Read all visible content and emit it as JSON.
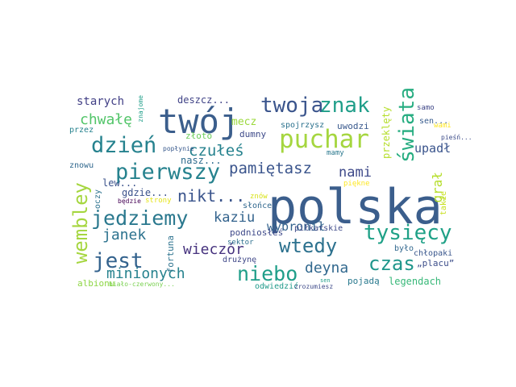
{
  "words": [
    {
      "text": "polska",
      "color": "#3b5e8c"
    },
    {
      "text": "twój",
      "color": "#3b5e8c"
    },
    {
      "text": "puchar",
      "color": "#a5d63f"
    },
    {
      "text": "twoja",
      "color": "#3a548c"
    },
    {
      "text": "znak",
      "color": "#1f9e89"
    },
    {
      "text": "dzień",
      "color": "#26828e"
    },
    {
      "text": "pierwszy",
      "color": "#26828e"
    },
    {
      "text": "świata",
      "color": "#27ad81"
    },
    {
      "text": "tysięcy",
      "color": "#1fa187"
    },
    {
      "text": "wembley",
      "color": "#a5d63f"
    },
    {
      "text": "jedziemy",
      "color": "#2a788e"
    },
    {
      "text": "jest",
      "color": "#33628d"
    },
    {
      "text": "niebo",
      "color": "#1f9e89"
    },
    {
      "text": "czas",
      "color": "#1f968b"
    },
    {
      "text": "wtedy",
      "color": "#2c718e"
    },
    {
      "text": "pamiętasz",
      "color": "#3a548c"
    },
    {
      "text": "nami",
      "color": "#3e4989"
    },
    {
      "text": "czułeś",
      "color": "#26828e"
    },
    {
      "text": "chwałę",
      "color": "#52c569"
    },
    {
      "text": "nikt...",
      "color": "#3a548c"
    },
    {
      "text": "kaziu",
      "color": "#33638d"
    },
    {
      "text": "janek",
      "color": "#2c728e"
    },
    {
      "text": "wieczór",
      "color": "#46327e"
    },
    {
      "text": "minionych",
      "color": "#26828e"
    },
    {
      "text": "deyna",
      "color": "#31688e"
    },
    {
      "text": "grał",
      "color": "#b5de2b"
    },
    {
      "text": "upadł",
      "color": "#3a548c"
    },
    {
      "text": "wybronił",
      "color": "#33638d"
    },
    {
      "text": "starych",
      "color": "#424086"
    },
    {
      "text": "deszcz...",
      "color": "#414487"
    },
    {
      "text": "mecz",
      "color": "#9bd93c"
    },
    {
      "text": "złoto",
      "color": "#6ccd5a"
    },
    {
      "text": "dumny",
      "color": "#3e4a89"
    },
    {
      "text": "nasz...",
      "color": "#2f6c8e"
    },
    {
      "text": "spojrzysz",
      "color": "#2c728e"
    },
    {
      "text": "uwodzi",
      "color": "#38588c"
    },
    {
      "text": "sen...",
      "color": "#375b8d"
    },
    {
      "text": "samo",
      "color": "#3f4788"
    },
    {
      "text": "wami",
      "color": "#fde725"
    },
    {
      "text": "przeklęty",
      "color": "#b5de2b"
    },
    {
      "text": "mamy",
      "color": "#2a788e"
    },
    {
      "text": "gdzie...",
      "color": "#3b528b"
    },
    {
      "text": "lew...",
      "color": "#3b528b"
    },
    {
      "text": "znowu",
      "color": "#31688e"
    },
    {
      "text": "oczy",
      "color": "#2c728e"
    },
    {
      "text": "znów",
      "color": "#d8e219"
    },
    {
      "text": "będzie",
      "color": "#440154"
    },
    {
      "text": "strony",
      "color": "#e5e419"
    },
    {
      "text": "słońce",
      "color": "#31688e"
    },
    {
      "text": "podniosłeś",
      "color": "#3e4989"
    },
    {
      "text": "sektor",
      "color": "#2d708e"
    },
    {
      "text": "fortuna",
      "color": "#2c728e"
    },
    {
      "text": "drużynę",
      "color": "#3f4788"
    },
    {
      "text": "albionu",
      "color": "#8ed645"
    },
    {
      "text": "biało-czerwony...",
      "color": "#7ad151"
    },
    {
      "text": "odwiedzić",
      "color": "#1f9a8a"
    },
    {
      "text": "zrozumiesz",
      "color": "#3e4a89"
    },
    {
      "text": "pojadą",
      "color": "#29798e"
    },
    {
      "text": "legendach",
      "color": "#37b878"
    },
    {
      "text": "„placu”",
      "color": "#3d4e8a"
    },
    {
      "text": "było",
      "color": "#31678e"
    },
    {
      "text": "chłopaki",
      "color": "#39568c"
    },
    {
      "text": "piłkarskie",
      "color": "#3e4a89"
    },
    {
      "text": "piękne",
      "color": "#fde725"
    },
    {
      "text": "takie",
      "color": "#c8e020"
    },
    {
      "text": "pieśń...",
      "color": "#3d4d8a"
    },
    {
      "text": "popłynie",
      "color": "#38598c"
    },
    {
      "text": "przez",
      "color": "#26828e"
    },
    {
      "text": "znajome",
      "color": "#1f9e89"
    },
    {
      "text": "sen",
      "color": "#1f9e89"
    }
  ]
}
